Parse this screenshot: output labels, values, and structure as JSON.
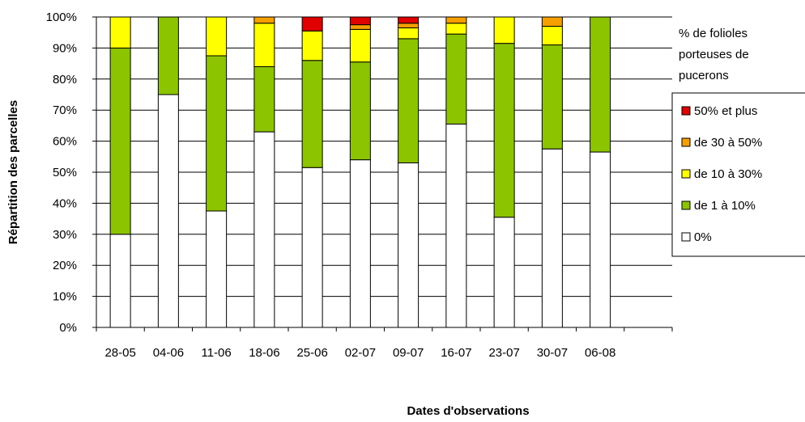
{
  "chart_data": {
    "type": "bar",
    "stacked": true,
    "percent_stacked": true,
    "xlabel": "Dates d'observations",
    "ylabel": "Répartition des parcelles",
    "ylim": [
      0,
      100
    ],
    "yticks": [
      "0%",
      "10%",
      "20%",
      "30%",
      "40%",
      "50%",
      "60%",
      "70%",
      "80%",
      "90%",
      "100%"
    ],
    "categories": [
      "28-05",
      "04-06",
      "11-06",
      "18-06",
      "25-06",
      "02-07",
      "09-07",
      "16-07",
      "23-07",
      "30-07",
      "06-08"
    ],
    "grid": true,
    "legend_position": "right",
    "legend_title": [
      "% de folioles",
      "porteuses de",
      "pucerons"
    ],
    "series": [
      {
        "name": "0%",
        "color": "#ffffff",
        "values": [
          30,
          75,
          37.5,
          63,
          51.5,
          54,
          53,
          65.5,
          35.5,
          57.5,
          56.5
        ]
      },
      {
        "name": "de 1 à 10%",
        "color": "#8dc400",
        "values": [
          60,
          25,
          50,
          21,
          34.5,
          31.5,
          40,
          29,
          56,
          33.5,
          43.5
        ]
      },
      {
        "name": "de 10 à 30%",
        "color": "#ffff00",
        "values": [
          10,
          0,
          12.5,
          14,
          9.5,
          10.5,
          3.5,
          3.5,
          8.5,
          6,
          0
        ]
      },
      {
        "name": "de 30 à 50%",
        "color": "#f5a000",
        "values": [
          0,
          0,
          0,
          2,
          0,
          1.5,
          1.5,
          2,
          0,
          3,
          0
        ]
      },
      {
        "name": "50% et plus",
        "color": "#e00000",
        "values": [
          0,
          0,
          0,
          0,
          4.5,
          2.5,
          2,
          0,
          0,
          0,
          0
        ]
      }
    ],
    "legend_order": [
      "50% et plus",
      "de 30 à 50%",
      "de 10 à 30%",
      "de 1 à 10%",
      "0%"
    ]
  }
}
